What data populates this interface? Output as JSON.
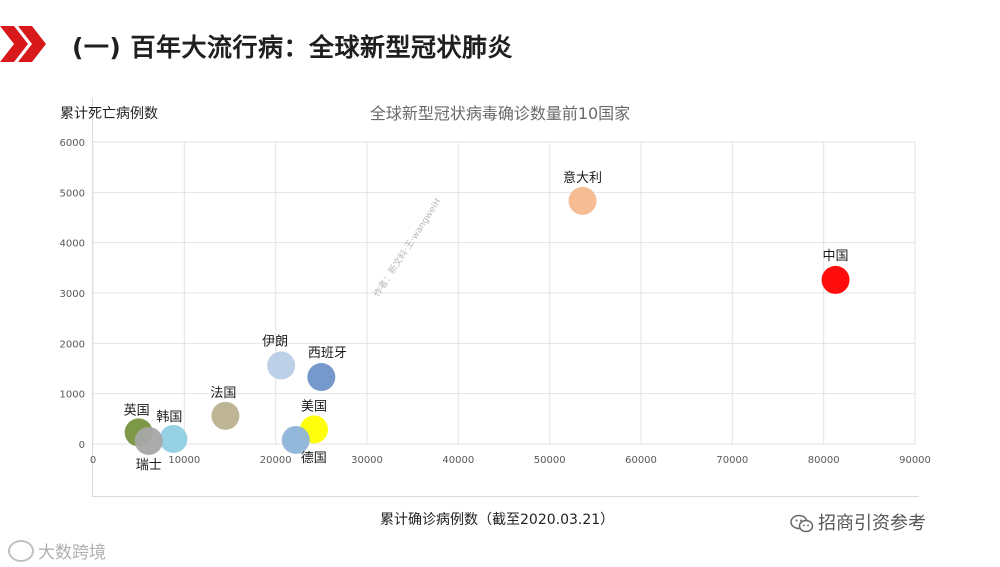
{
  "slide": {
    "title": "(一) 百年大流行病：全球新型冠状肺炎",
    "accent_color": "#d7191c"
  },
  "chart_data": {
    "type": "scatter",
    "title": "全球新型冠状病毒确诊数量前10国家",
    "xlabel": "累计确诊病例数（截至2020.03.21）",
    "ylabel": "累计死亡病例数",
    "xlim": [
      0,
      90000
    ],
    "ylim": [
      0,
      6000
    ],
    "xticks": [
      0,
      10000,
      20000,
      30000,
      40000,
      50000,
      60000,
      70000,
      80000,
      90000
    ],
    "yticks": [
      0,
      1000,
      2000,
      3000,
      4000,
      5000,
      6000
    ],
    "grid": true,
    "points": [
      {
        "label": "中国",
        "x": 81300,
        "y": 3260,
        "color": "#ff0000"
      },
      {
        "label": "意大利",
        "x": 53600,
        "y": 4830,
        "color": "#f6b88d"
      },
      {
        "label": "伊朗",
        "x": 20600,
        "y": 1560,
        "color": "#b8cde6"
      },
      {
        "label": "西班牙",
        "x": 25000,
        "y": 1330,
        "color": "#6f94c8"
      },
      {
        "label": "法国",
        "x": 14500,
        "y": 560,
        "color": "#b9b18e"
      },
      {
        "label": "美国",
        "x": 24200,
        "y": 290,
        "color": "#ffff00"
      },
      {
        "label": "德国",
        "x": 22200,
        "y": 80,
        "color": "#8eb4da"
      },
      {
        "label": "英国",
        "x": 5000,
        "y": 230,
        "color": "#76923c"
      },
      {
        "label": "韩国",
        "x": 8800,
        "y": 100,
        "color": "#8fcfe2"
      },
      {
        "label": "瑞士",
        "x": 6100,
        "y": 60,
        "color": "#a6a6a6"
      }
    ]
  },
  "watermark": {
    "diagonal": "作者：新文科·王·wangweiH",
    "footer_left": "大数跨境",
    "footer_right": "招商引资参考"
  }
}
